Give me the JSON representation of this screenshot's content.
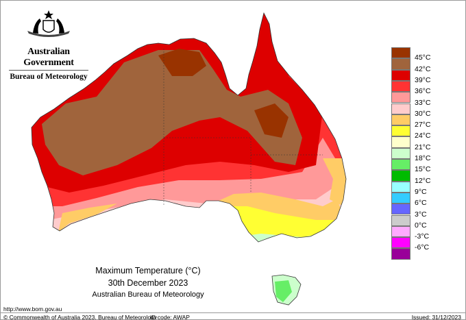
{
  "header": {
    "government": "Australian Government",
    "bureau": "Bureau of Meteorology"
  },
  "title": {
    "line1": "Maximum Temperature (°C)",
    "line2": "30th December 2023",
    "line3": "Australian Bureau of Meteorology"
  },
  "legend": {
    "swatches": [
      "#993300",
      "#a0643c",
      "#dd0000",
      "#ff3333",
      "#ff9999",
      "#ffcccc",
      "#ffcc66",
      "#ffff33",
      "#ffffcc",
      "#ccffcc",
      "#66ee66",
      "#00bb00",
      "#99ffff",
      "#33ccff",
      "#6666ff",
      "#cccccc",
      "#ffaaff",
      "#ff00ff",
      "#990099"
    ],
    "labels": [
      "45°C",
      "42°C",
      "39°C",
      "36°C",
      "33°C",
      "30°C",
      "27°C",
      "24°C",
      "21°C",
      "18°C",
      "15°C",
      "12°C",
      "9°C",
      "6°C",
      "3°C",
      "0°C",
      "-3°C",
      "-6°C"
    ]
  },
  "footer": {
    "url": "http://www.bom.gov.au",
    "copyright": "© Commonwealth of Australia 2023, Bureau of Meteorology",
    "id_code": "ID code: AWAP",
    "issued": "Issued: 31/12/2023"
  }
}
